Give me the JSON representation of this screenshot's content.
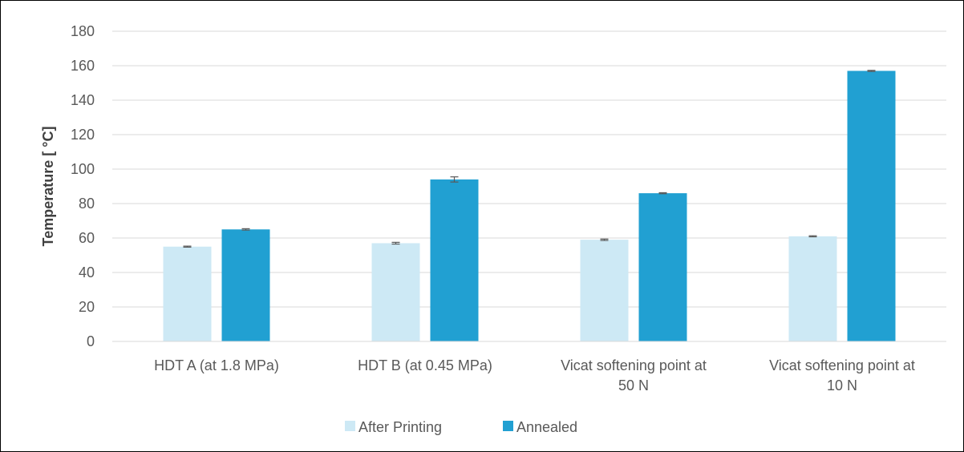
{
  "chart_data": {
    "type": "bar",
    "title": "",
    "xlabel": "",
    "ylabel": "Temperature [ °C]",
    "ylim": [
      0,
      180
    ],
    "yticks": [
      0,
      20,
      40,
      60,
      80,
      100,
      120,
      140,
      160,
      180
    ],
    "grid": true,
    "legend_position": "bottom",
    "categories": [
      [
        "HDT A (at 1.8 MPa)"
      ],
      [
        "HDT B (at 0.45 MPa)"
      ],
      [
        "Vicat softening point at",
        "50 N"
      ],
      [
        "Vicat softening point at",
        "10 N"
      ]
    ],
    "series": [
      {
        "name": "After Printing",
        "color": "#cde9f5",
        "values": [
          55,
          57,
          59,
          61
        ],
        "errors": [
          0.3,
          0.5,
          0.4,
          0.3
        ]
      },
      {
        "name": "Annealed",
        "color": "#21a0d2",
        "values": [
          65,
          94,
          86,
          157
        ],
        "errors": [
          0.4,
          1.5,
          0.3,
          0.3
        ]
      }
    ]
  }
}
